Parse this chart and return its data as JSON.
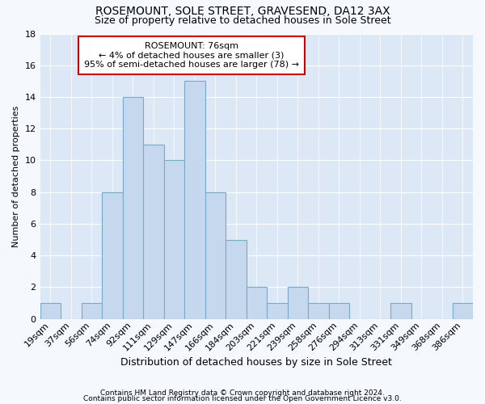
{
  "title1": "ROSEMOUNT, SOLE STREET, GRAVESEND, DA12 3AX",
  "title2": "Size of property relative to detached houses in Sole Street",
  "xlabel": "Distribution of detached houses by size in Sole Street",
  "ylabel": "Number of detached properties",
  "categories": [
    "19sqm",
    "37sqm",
    "56sqm",
    "74sqm",
    "92sqm",
    "111sqm",
    "129sqm",
    "147sqm",
    "166sqm",
    "184sqm",
    "203sqm",
    "221sqm",
    "239sqm",
    "258sqm",
    "276sqm",
    "294sqm",
    "313sqm",
    "331sqm",
    "349sqm",
    "368sqm",
    "386sqm"
  ],
  "values": [
    1,
    0,
    1,
    8,
    14,
    11,
    10,
    15,
    8,
    5,
    2,
    1,
    2,
    1,
    1,
    0,
    0,
    1,
    0,
    0,
    1
  ],
  "bar_color": "#c5d8ee",
  "bar_edge_color": "#7aaacb",
  "annotation_title": "ROSEMOUNT: 76sqm",
  "annotation_line1": "← 4% of detached houses are smaller (3)",
  "annotation_line2": "95% of semi-detached houses are larger (78) →",
  "annotation_box_facecolor": "#ffffff",
  "annotation_box_edgecolor": "#cc0000",
  "ylim": [
    0,
    18
  ],
  "yticks": [
    0,
    2,
    4,
    6,
    8,
    10,
    12,
    14,
    16,
    18
  ],
  "footnote1": "Contains HM Land Registry data © Crown copyright and database right 2024.",
  "footnote2": "Contains public sector information licensed under the Open Government Licence v3.0.",
  "bg_color": "#f5f8fd",
  "plot_bg_color": "#dce8f5",
  "grid_color": "#ffffff",
  "title1_fontsize": 10,
  "title2_fontsize": 9,
  "xlabel_fontsize": 9,
  "ylabel_fontsize": 8,
  "tick_fontsize": 8,
  "annot_fontsize": 8,
  "footnote_fontsize": 6.5
}
